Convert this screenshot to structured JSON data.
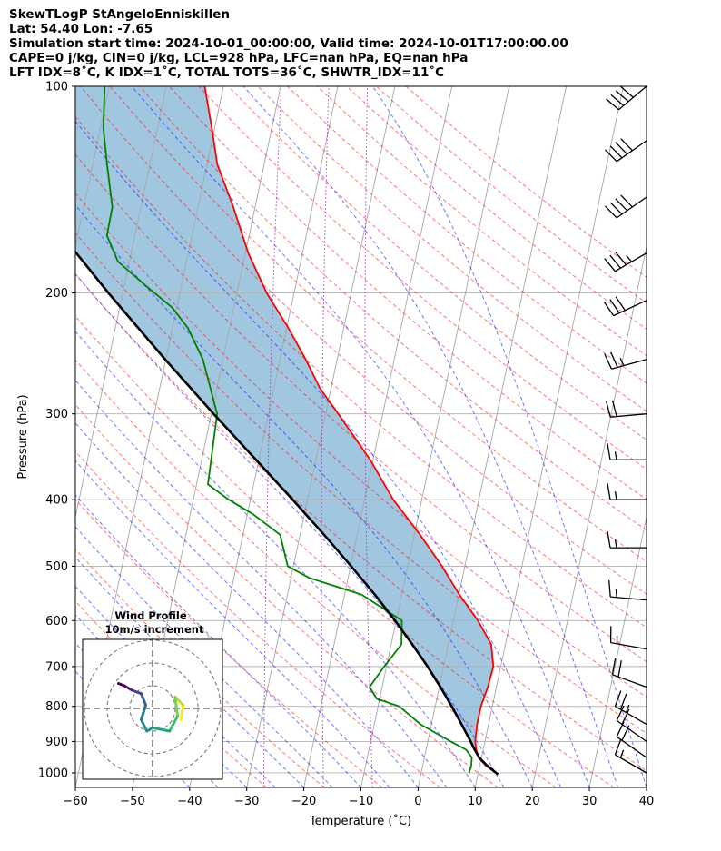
{
  "header": {
    "line1": "SkewTLogP StAngeloEnniskillen",
    "line2": "Lat: 54.40   Lon: -7.65",
    "line3": "Simulation start time: 2024-10-01_00:00:00, Valid time: 2024-10-01T17:00:00.00",
    "line4": "CAPE=0 j/kg, CIN=0 j/kg, LCL=928 hPa, LFC=nan hPa, EQ=nan hPa",
    "line5": "LFT IDX=8˚C, K IDX=1˚C, TOTAL TOTS=36˚C, SHWTR_IDX=11˚C"
  },
  "chart_data": {
    "type": "line",
    "subtype": "skew-t log-p",
    "xlabel": "Temperature (˚C)",
    "ylabel": "Pressure (hPa)",
    "xlim": [
      -60,
      40
    ],
    "ylim": [
      1050,
      100
    ],
    "yscale": "log",
    "x_ticks": [
      "−60",
      "−50",
      "−40",
      "−30",
      "−20",
      "−10",
      "0",
      "10",
      "20",
      "30",
      "40"
    ],
    "y_ticks": [
      1000,
      900,
      800,
      700,
      600,
      500,
      400,
      300,
      200,
      100
    ],
    "grid": true,
    "series": [
      {
        "role": "temperature",
        "color": "#ff0000",
        "points": [
          [
            1005,
            13.5
          ],
          [
            975,
            11.0
          ],
          [
            950,
            9.5
          ],
          [
            925,
            8.8
          ],
          [
            900,
            8.3
          ],
          [
            850,
            8.0
          ],
          [
            800,
            8.0
          ],
          [
            750,
            8.5
          ],
          [
            700,
            8.7
          ],
          [
            650,
            7.5
          ],
          [
            600,
            4.3
          ],
          [
            550,
            0.1
          ],
          [
            500,
            -4.0
          ],
          [
            450,
            -9.0
          ],
          [
            400,
            -15.0
          ],
          [
            350,
            -20.5
          ],
          [
            300,
            -27.8
          ],
          [
            275,
            -32.0
          ],
          [
            250,
            -35.5
          ],
          [
            225,
            -39.7
          ],
          [
            200,
            -44.8
          ],
          [
            175,
            -49.5
          ],
          [
            150,
            -53.8
          ],
          [
            130,
            -58.2
          ],
          [
            115,
            -60.5
          ],
          [
            100,
            -63.3
          ]
        ]
      },
      {
        "role": "dewpoint",
        "color": "#008000",
        "points": [
          [
            1000,
            8.4
          ],
          [
            975,
            8.5
          ],
          [
            950,
            8.3
          ],
          [
            925,
            7.0
          ],
          [
            900,
            4.0
          ],
          [
            850,
            -1.9
          ],
          [
            800,
            -6.3
          ],
          [
            780,
            -10.5
          ],
          [
            750,
            -12.2
          ],
          [
            700,
            -10.4
          ],
          [
            650,
            -8.2
          ],
          [
            600,
            -9.0
          ],
          [
            550,
            -17.0
          ],
          [
            520,
            -26.8
          ],
          [
            500,
            -31.0
          ],
          [
            450,
            -33.5
          ],
          [
            420,
            -39.0
          ],
          [
            400,
            -43.8
          ],
          [
            380,
            -48.0
          ],
          [
            300,
            -49.0
          ],
          [
            250,
            -53.5
          ],
          [
            225,
            -57.3
          ],
          [
            210,
            -60.8
          ],
          [
            195,
            -66.3
          ],
          [
            180,
            -72.0
          ],
          [
            165,
            -74.9
          ],
          [
            150,
            -75.0
          ],
          [
            130,
            -77.5
          ],
          [
            115,
            -79.5
          ],
          [
            100,
            -80.8
          ]
        ]
      },
      {
        "role": "parcel",
        "color": "#000000",
        "points": [
          [
            1005,
            13.5
          ],
          [
            975,
            11.2
          ],
          [
            950,
            9.6
          ],
          [
            925,
            8.5
          ],
          [
            900,
            7.5
          ],
          [
            850,
            5.3
          ],
          [
            800,
            2.9
          ],
          [
            750,
            0.2
          ],
          [
            700,
            -2.8
          ],
          [
            650,
            -6.3
          ],
          [
            600,
            -10.2
          ],
          [
            550,
            -14.7
          ],
          [
            500,
            -19.9
          ],
          [
            450,
            -25.8
          ],
          [
            400,
            -32.6
          ],
          [
            350,
            -40.5
          ],
          [
            300,
            -49.6
          ],
          [
            250,
            -60.1
          ],
          [
            200,
            -72.5
          ],
          [
            175,
            -79.6
          ],
          [
            150,
            -87.6
          ],
          [
            125,
            -96.6
          ],
          [
            100,
            -107.1
          ]
        ]
      }
    ],
    "shaded_region": "between parcel and temperature profiles",
    "wind_barbs": [
      {
        "p": 100,
        "dir": 230,
        "kt": 40
      },
      {
        "p": 120,
        "dir": 235,
        "kt": 40
      },
      {
        "p": 145,
        "dir": 235,
        "kt": 40
      },
      {
        "p": 175,
        "dir": 240,
        "kt": 35
      },
      {
        "p": 205,
        "dir": 245,
        "kt": 30
      },
      {
        "p": 250,
        "dir": 255,
        "kt": 25
      },
      {
        "p": 300,
        "dir": 265,
        "kt": 20
      },
      {
        "p": 350,
        "dir": 270,
        "kt": 15
      },
      {
        "p": 400,
        "dir": 270,
        "kt": 15
      },
      {
        "p": 470,
        "dir": 270,
        "kt": 15
      },
      {
        "p": 560,
        "dir": 275,
        "kt": 15
      },
      {
        "p": 660,
        "dir": 280,
        "kt": 15
      },
      {
        "p": 750,
        "dir": 290,
        "kt": 20
      },
      {
        "p": 850,
        "dir": 300,
        "kt": 25
      },
      {
        "p": 900,
        "dir": 305,
        "kt": 20
      },
      {
        "p": 950,
        "dir": 305,
        "kt": 20
      },
      {
        "p": 1000,
        "dir": 300,
        "kt": 15
      }
    ],
    "inset": {
      "title_line1": "Wind Profile",
      "title_line2": "10m/s increment",
      "hodograph_uv": [
        [
          2.5,
          -1.0
        ],
        [
          2.7,
          0.3
        ],
        [
          2.0,
          1.0
        ],
        [
          2.2,
          -0.7
        ],
        [
          1.5,
          -2.0
        ],
        [
          0,
          -1.7
        ],
        [
          -0.5,
          -2.0
        ],
        [
          -1.0,
          -1.0
        ],
        [
          -0.6,
          0.3
        ],
        [
          -1.0,
          1.3
        ],
        [
          -1.8,
          1.6
        ],
        [
          -2.5,
          2.0
        ],
        [
          -3.0,
          2.2
        ]
      ]
    }
  }
}
